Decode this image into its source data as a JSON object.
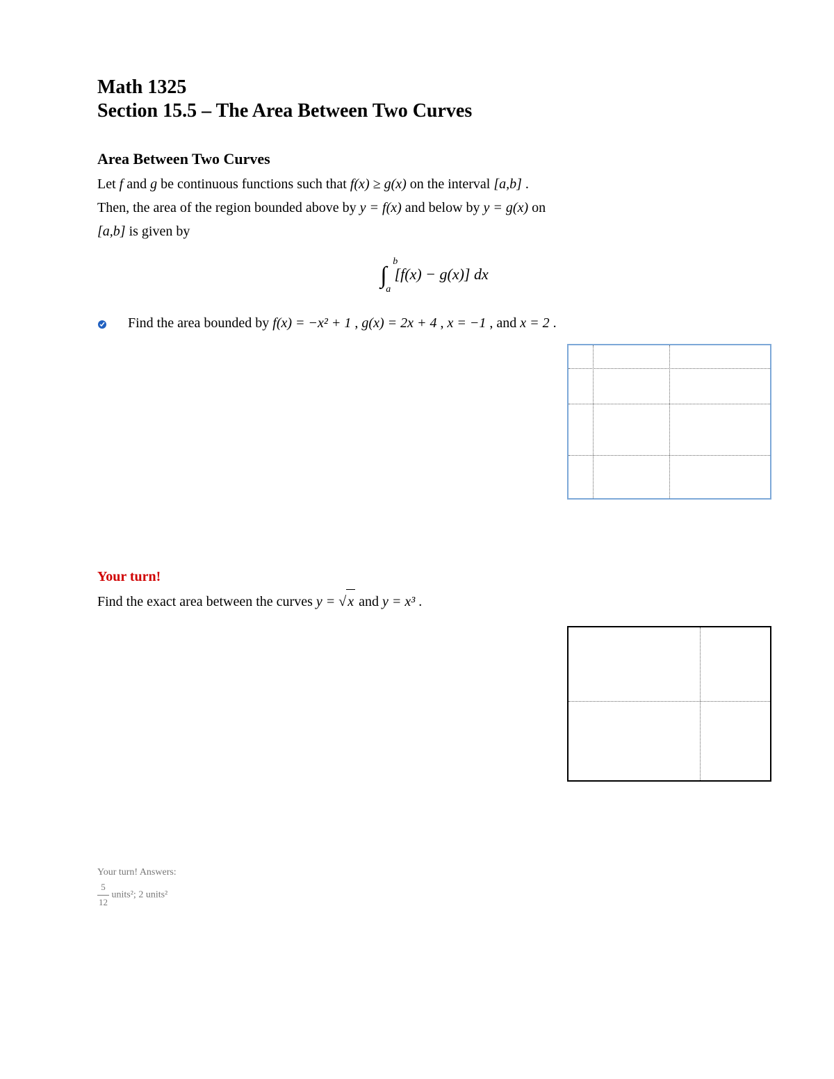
{
  "header": {
    "course": "Math 1325",
    "section_title": "Section 15.5 – The Area Between Two Curves"
  },
  "intro": {
    "subtitle": "Area Between Two Curves",
    "line1_a": "Let ",
    "line1_f": "f",
    "line1_b": " and ",
    "line1_g": "g",
    "line1_c": " be continuous functions such that ",
    "cond": "f(x) ≥ g(x)",
    "line1_d": " on the interval ",
    "interval": "[a,b]",
    "line1_e": ".",
    "line2_a": "Then, the area of the region bounded above by ",
    "eq1": "y = f(x)",
    "line2_b": " and below by ",
    "eq2": "y = g(x)",
    "line2_c": " on",
    "line3_a": "[a,b]",
    "line3_b": " is given by",
    "integral_upper": "b",
    "integral_lower": "a",
    "integral_body": "[f(x) − g(x)] dx"
  },
  "example": {
    "prompt_a": "Find the area bounded by ",
    "fx": "f(x) = −x² + 1",
    "sep1": ", ",
    "gx": "g(x) = 2x + 4",
    "sep2": ", ",
    "x1": "x = −1",
    "sep3": ", and ",
    "x2": "x = 2",
    "end": ".",
    "graph": {
      "border_color": "#7da8d8",
      "grid_color": "#666666",
      "h_lines_pct": [
        15,
        38,
        72
      ],
      "v_lines_pct": [
        12,
        50
      ]
    }
  },
  "your_turn": {
    "label": "Your turn!",
    "prompt_a": "Find the exact area between the curves ",
    "eq1_pre": "y = ",
    "eq1_radicand": "x",
    "mid": " and ",
    "eq2": "y = x³",
    "end": ".",
    "graph": {
      "border_color": "#000000",
      "grid_color": "#666666",
      "h_lines_pct": [
        48
      ],
      "v_lines_pct": [
        65
      ]
    }
  },
  "answers": {
    "heading": "Your turn! Answers:",
    "frac_num": "5",
    "frac_den": "12",
    "ans1_suffix": " units²; ",
    "ans2": "2 units²"
  }
}
